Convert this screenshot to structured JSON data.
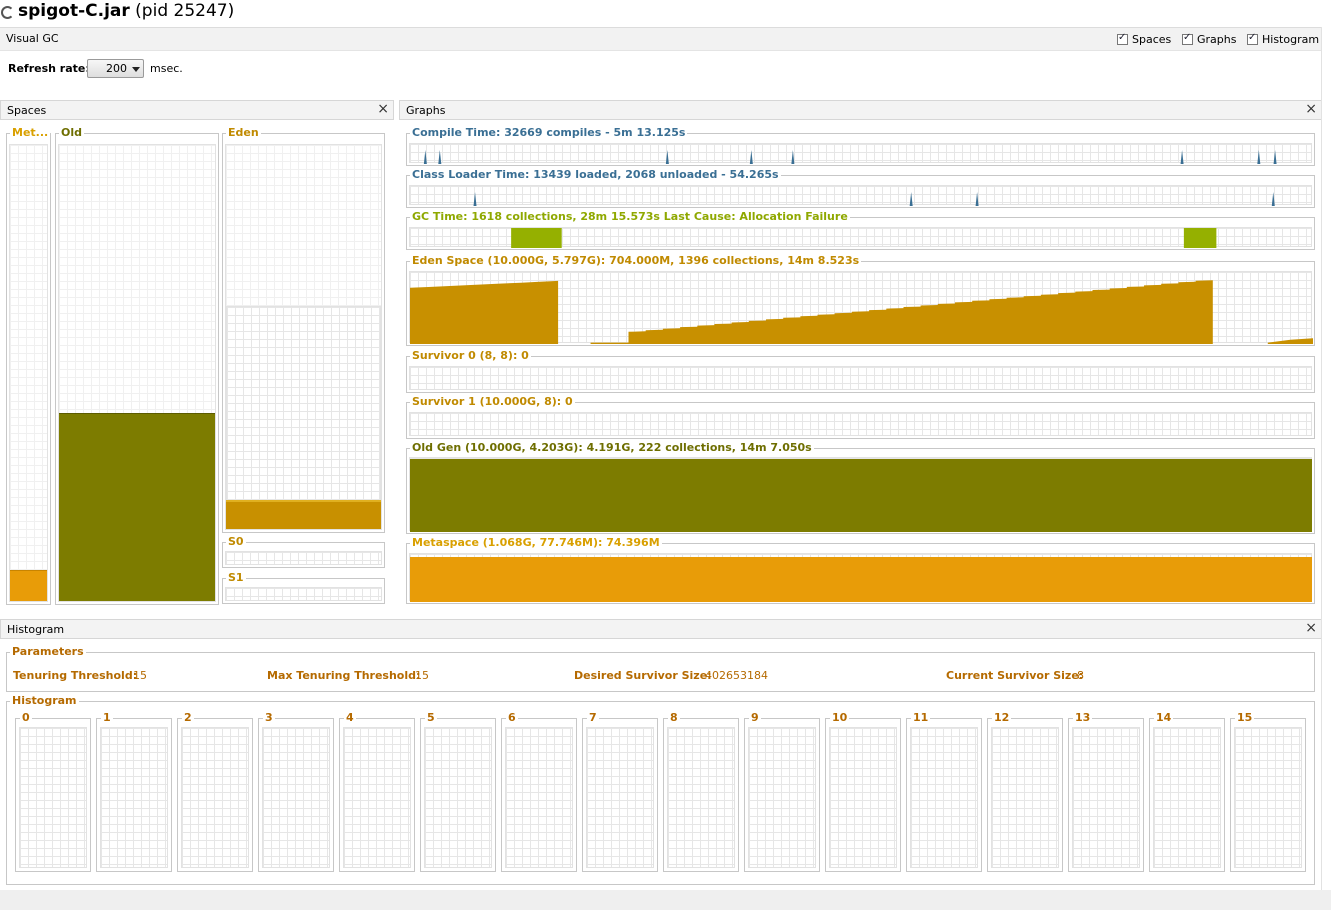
{
  "window": {
    "title_bold": "spigot-C.jar",
    "title_rest": " (pid 25247)"
  },
  "tab": {
    "label": "Visual GC",
    "checkboxes": [
      {
        "label": "Spaces",
        "checked": true
      },
      {
        "label": "Graphs",
        "checked": true
      },
      {
        "label": "Histogram",
        "checked": true
      }
    ]
  },
  "refresh": {
    "label": "Refresh rate:",
    "value": "200",
    "unit": "msec."
  },
  "spaces": {
    "title": "Spaces",
    "meta": {
      "label": "Met...",
      "used_fraction": 0.065
    },
    "old": {
      "label": "Old",
      "used_fraction": 0.41
    },
    "eden": {
      "label": "Eden",
      "committed_fraction": 0.58,
      "used_fraction": 0.07
    },
    "s0": {
      "label": "S0"
    },
    "s1": {
      "label": "S1"
    }
  },
  "graphs": {
    "title": "Graphs",
    "compile": {
      "label": "Compile Time: 32669 compiles - 5m 13.125s",
      "spikes": [
        0.017,
        0.033,
        0.285,
        0.378,
        0.424,
        0.855,
        0.94,
        0.958
      ]
    },
    "classloader": {
      "label": "Class Loader Time: 13439 loaded, 2068 unloaded - 54.265s",
      "spikes": [
        0.072,
        0.555,
        0.628,
        0.956
      ]
    },
    "gc": {
      "label": "GC Time: 1618 collections, 28m 15.573s  Last Cause: Allocation Failure",
      "bursts": [
        [
          0.112,
          0.168
        ],
        [
          0.857,
          0.893
        ]
      ]
    },
    "eden": {
      "label": "Eden Space (10.000G, 5.797G): 704.000M, 1396 collections, 14m 8.523s"
    },
    "survivor0": {
      "label": "Survivor 0 (8, 8): 0"
    },
    "survivor1": {
      "label": "Survivor 1 (10.000G, 8): 0"
    },
    "oldgen": {
      "label": "Old Gen (10.000G, 4.203G): 4.191G, 222 collections, 14m 7.050s"
    },
    "metaspace": {
      "label": "Metaspace (1.068G, 77.746M): 74.396M"
    }
  },
  "histogram": {
    "title": "Histogram",
    "parameters_label": "Parameters",
    "params": [
      {
        "label": "Tenuring Threshold:",
        "value": "15"
      },
      {
        "label": "Max Tenuring Threshold:",
        "value": "15"
      },
      {
        "label": "Desired Survivor Size:",
        "value": "402653184"
      },
      {
        "label": "Current Survivor Size:",
        "value": "8"
      }
    ],
    "histogram_label": "Histogram",
    "buckets": [
      "0",
      "1",
      "2",
      "3",
      "4",
      "5",
      "6",
      "7",
      "8",
      "9",
      "10",
      "11",
      "12",
      "13",
      "14",
      "15"
    ]
  },
  "colors": {
    "meta": "#e89c08",
    "old": "#7d7c00",
    "eden": "#c89000",
    "compile": "#3a6f94",
    "gc": "#95b000"
  }
}
